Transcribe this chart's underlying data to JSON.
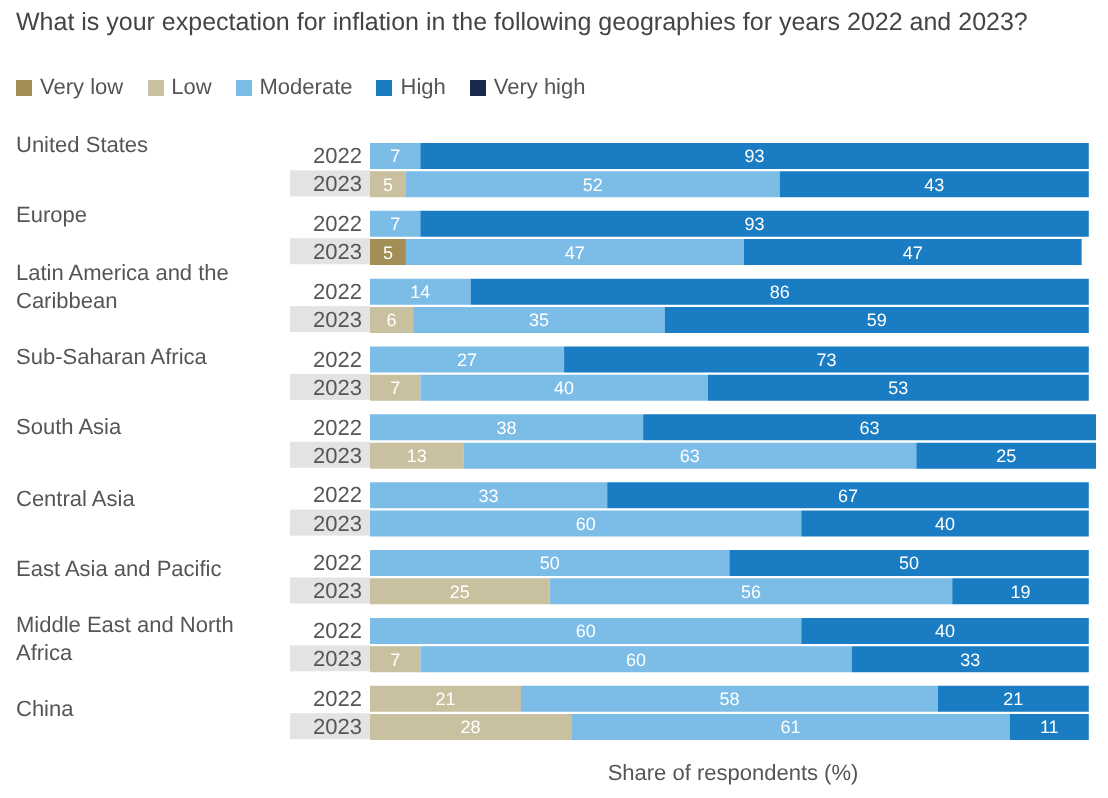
{
  "chart_data": {
    "type": "bar",
    "orientation": "horizontal",
    "stacked": true,
    "title": "What is your expectation for inflation in the following geographies for years 2022 and 2023?",
    "xlabel": "Share of respondents (%)",
    "categories": [
      "2022",
      "2023",
      "2022",
      "2023",
      "2022",
      "2023",
      "2022",
      "2023",
      "2022",
      "2023",
      "2022",
      "2023",
      "2022",
      "2023",
      "2022",
      "2023",
      "2022",
      "2023"
    ],
    "annotations": [
      "United States",
      "Europe",
      "Latin America and the Caribbean",
      "Sub-Saharan Africa",
      "South Asia",
      "Central Asia",
      "East Asia and Pacific",
      "Middle East and North Africa",
      "China"
    ],
    "series": [
      {
        "name": "Very low",
        "color": "#a38f56",
        "values": [
          null,
          null,
          null,
          5,
          null,
          null,
          null,
          null,
          null,
          null,
          null,
          null,
          null,
          null,
          null,
          null,
          null,
          null
        ]
      },
      {
        "name": "Low",
        "color": "#c9c0a0",
        "values": [
          null,
          5,
          null,
          null,
          null,
          6,
          null,
          7,
          null,
          13,
          null,
          null,
          null,
          25,
          null,
          7,
          21,
          28
        ]
      },
      {
        "name": "Moderate",
        "color": "#7cbde8",
        "values": [
          7,
          52,
          7,
          47,
          14,
          35,
          27,
          40,
          38,
          63,
          33,
          60,
          50,
          56,
          60,
          60,
          58,
          61
        ]
      },
      {
        "name": "High",
        "color": "#1a7dc4",
        "values": [
          93,
          43,
          93,
          47,
          86,
          59,
          73,
          53,
          63,
          25,
          67,
          40,
          50,
          19,
          40,
          33,
          21,
          11
        ]
      },
      {
        "name": "Very high",
        "color": "#1b2a4a",
        "values": [
          null,
          null,
          null,
          null,
          null,
          null,
          null,
          null,
          null,
          null,
          null,
          null,
          null,
          null,
          null,
          null,
          null,
          null
        ]
      }
    ],
    "xlim": [
      0,
      101
    ],
    "tick_labels": false,
    "data_labels": true,
    "legend": "top left"
  }
}
